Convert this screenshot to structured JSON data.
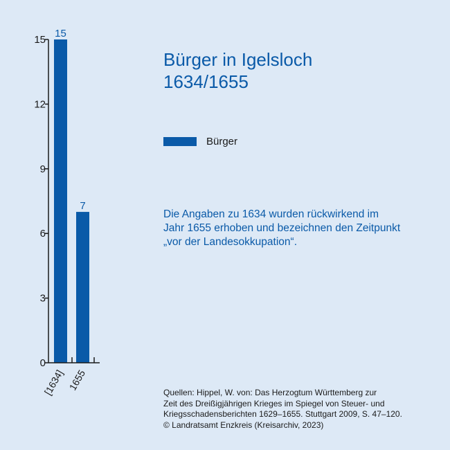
{
  "chart_data": {
    "type": "bar",
    "title": "Bürger in Igelsloch 1634/1655",
    "categories": [
      "[1634]",
      "1655"
    ],
    "series": [
      {
        "name": "Bürger",
        "values": [
          15,
          7
        ],
        "color": "#0a5aa8"
      }
    ],
    "data_labels": [
      "15",
      "7"
    ],
    "yticks": [
      0,
      3,
      6,
      9,
      12,
      15
    ],
    "ylim": [
      0,
      15
    ],
    "xlabel": "",
    "ylabel": "",
    "grid": false,
    "legend": "right"
  },
  "title_lines": [
    "Bürger in Igelsloch",
    "1634/1655"
  ],
  "legend_label": "Bürger",
  "note_lines": [
    "Die Angaben zu 1634 wurden rückwirkend im",
    "Jahr 1655 erhoben und bezeichnen den Zeitpunkt",
    "„vor der Landesokkupation“."
  ],
  "source_lines": [
    "Quellen: Hippel, W. von: Das Herzogtum Württemberg zur",
    "Zeit des Dreißigjährigen Krieges im Spiegel von Steuer- und",
    "Kriegsschadensberichten 1629–1655. Stuttgart 2009, S. 47–120.",
    "© Landratsamt Enzkreis (Kreisarchiv, 2023)"
  ],
  "colors": {
    "accent": "#0a5aa8",
    "background": "#dde9f6",
    "text": "#1a1a1a"
  }
}
